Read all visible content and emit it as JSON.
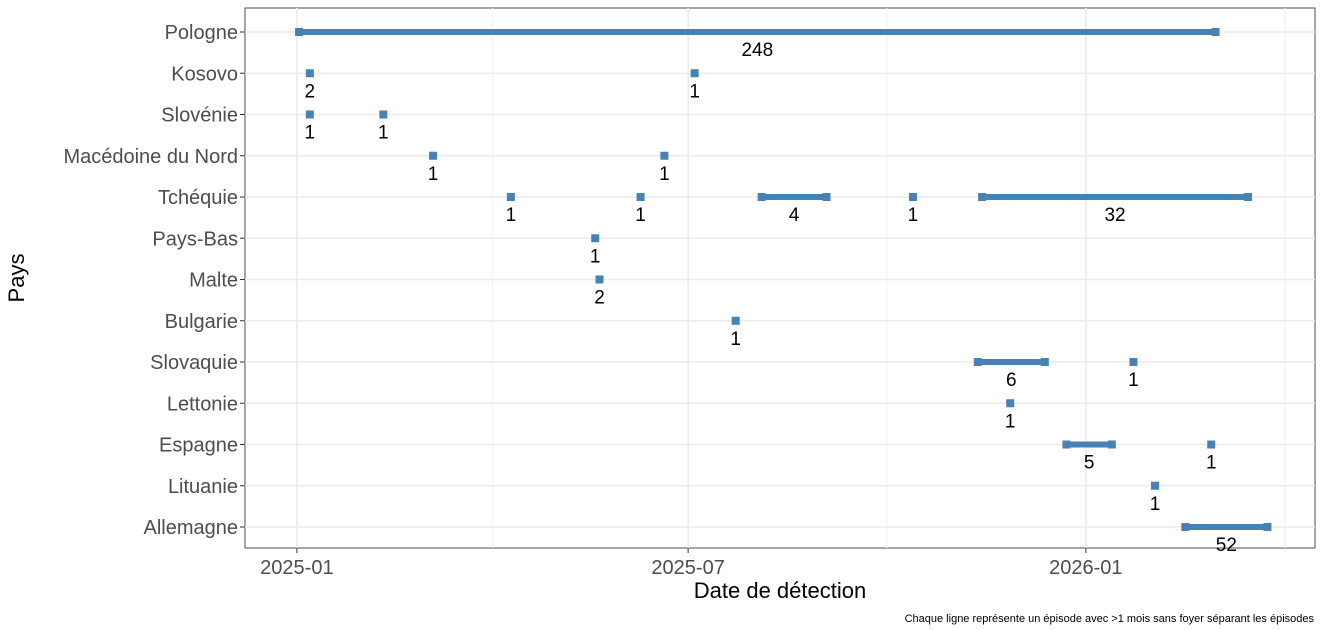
{
  "chart_data": {
    "type": "timeline",
    "xlabel": "Date de détection",
    "ylabel": "Pays",
    "caption": "Chaque ligne représente un épisode avec >1 mois sans foyer séparant les épisodes",
    "x_ticks": [
      "2025-01",
      "2025-07",
      "2026-01"
    ],
    "x_tick_dates": [
      "2025-01-01",
      "2025-07-01",
      "2026-01-01"
    ],
    "xlim": [
      "2024-12-08",
      "2026-04-17"
    ],
    "grid": true,
    "bar_color": "#4682b4",
    "countries": [
      "Pologne",
      "Kosovo",
      "Slovénie",
      "Macédoine du Nord",
      "Tchéquie",
      "Pays-Bas",
      "Malte",
      "Bulgarie",
      "Slovaquie",
      "Lettonie",
      "Espagne",
      "Lituanie",
      "Allemagne"
    ],
    "episodes": [
      {
        "country": "Pologne",
        "start": "2025-01-02",
        "end": "2026-03-02",
        "label": "248"
      },
      {
        "country": "Kosovo",
        "start": "2025-01-07",
        "end": "2025-01-07",
        "label": "2"
      },
      {
        "country": "Kosovo",
        "start": "2025-07-04",
        "end": "2025-07-04",
        "label": "1"
      },
      {
        "country": "Slovénie",
        "start": "2025-01-07",
        "end": "2025-01-07",
        "label": "1"
      },
      {
        "country": "Slovénie",
        "start": "2025-02-10",
        "end": "2025-02-10",
        "label": "1"
      },
      {
        "country": "Macédoine du Nord",
        "start": "2025-03-05",
        "end": "2025-03-05",
        "label": "1"
      },
      {
        "country": "Macédoine du Nord",
        "start": "2025-06-20",
        "end": "2025-06-20",
        "label": "1"
      },
      {
        "country": "Tchéquie",
        "start": "2025-04-10",
        "end": "2025-04-10",
        "label": "1"
      },
      {
        "country": "Tchéquie",
        "start": "2025-06-09",
        "end": "2025-06-09",
        "label": "1"
      },
      {
        "country": "Tchéquie",
        "start": "2025-08-04",
        "end": "2025-09-03",
        "label": "4"
      },
      {
        "country": "Tchéquie",
        "start": "2025-10-13",
        "end": "2025-10-13",
        "label": "1"
      },
      {
        "country": "Tchéquie",
        "start": "2025-11-14",
        "end": "2026-03-17",
        "label": "32"
      },
      {
        "country": "Pays-Bas",
        "start": "2025-05-19",
        "end": "2025-05-19",
        "label": "1"
      },
      {
        "country": "Malte",
        "start": "2025-05-21",
        "end": "2025-05-21",
        "label": "2"
      },
      {
        "country": "Bulgarie",
        "start": "2025-07-23",
        "end": "2025-07-23",
        "label": "1"
      },
      {
        "country": "Slovaquie",
        "start": "2025-11-12",
        "end": "2025-12-13",
        "label": "6"
      },
      {
        "country": "Slovaquie",
        "start": "2026-01-23",
        "end": "2026-01-23",
        "label": "1"
      },
      {
        "country": "Lettonie",
        "start": "2025-11-27",
        "end": "2025-11-27",
        "label": "1"
      },
      {
        "country": "Espagne",
        "start": "2025-12-23",
        "end": "2026-01-13",
        "label": "5"
      },
      {
        "country": "Espagne",
        "start": "2026-02-28",
        "end": "2026-02-28",
        "label": "1"
      },
      {
        "country": "Lituanie",
        "start": "2026-02-02",
        "end": "2026-02-02",
        "label": "1"
      },
      {
        "country": "Allemagne",
        "start": "2026-02-16",
        "end": "2026-03-26",
        "label": "52"
      }
    ]
  }
}
